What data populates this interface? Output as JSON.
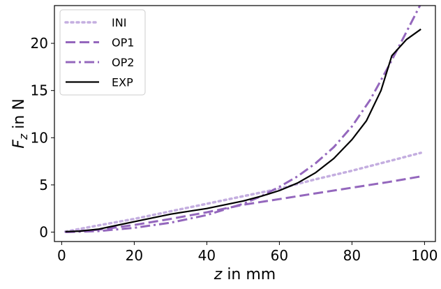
{
  "chart_data": {
    "type": "line",
    "xlabel_var": "z",
    "xlabel_rest": " in mm",
    "ylabel_var": "F",
    "ylabel_sub": "z",
    "ylabel_rest": " in N",
    "xlim": [
      -2,
      103
    ],
    "ylim": [
      -1,
      24
    ],
    "x_ticks": [
      0,
      20,
      40,
      60,
      80,
      100
    ],
    "y_ticks": [
      0,
      5,
      10,
      15,
      20
    ],
    "legend_position": "upper-left",
    "grid": false,
    "series": [
      {
        "name": "INI",
        "color": "#c4aee0",
        "style": "dotted",
        "x": [
          1,
          10,
          20,
          30,
          40,
          50,
          60,
          70,
          80,
          90,
          99
        ],
        "y": [
          0.05,
          0.7,
          1.4,
          2.2,
          3.0,
          3.8,
          4.6,
          5.6,
          6.5,
          7.5,
          8.4
        ]
      },
      {
        "name": "OP1",
        "color": "#9467bd",
        "style": "dashed",
        "x": [
          1,
          10,
          20,
          30,
          40,
          50,
          60,
          70,
          80,
          90,
          99
        ],
        "y": [
          0.0,
          0.25,
          0.75,
          1.4,
          2.1,
          2.9,
          3.5,
          4.1,
          4.7,
          5.3,
          5.9
        ]
      },
      {
        "name": "OP2",
        "color": "#9467bd",
        "style": "dashdot",
        "x": [
          1,
          10,
          20,
          30,
          40,
          50,
          55,
          60,
          65,
          70,
          75,
          80,
          85,
          90,
          95,
          99
        ],
        "y": [
          0.0,
          0.1,
          0.45,
          1.0,
          1.8,
          3.0,
          3.8,
          4.8,
          5.9,
          7.3,
          9.0,
          11.2,
          14.0,
          17.5,
          21.2,
          24.2
        ]
      },
      {
        "name": "EXP",
        "color": "#000000",
        "style": "solid",
        "x": [
          1,
          5,
          10,
          15,
          20,
          25,
          30,
          35,
          40,
          45,
          50,
          55,
          60,
          65,
          70,
          75,
          80,
          84,
          88,
          91,
          95,
          99
        ],
        "y": [
          0.05,
          0.1,
          0.3,
          0.7,
          1.1,
          1.5,
          1.9,
          2.2,
          2.5,
          2.9,
          3.3,
          3.8,
          4.4,
          5.2,
          6.3,
          7.8,
          9.8,
          11.8,
          15.0,
          18.7,
          20.4,
          21.5
        ]
      }
    ]
  }
}
